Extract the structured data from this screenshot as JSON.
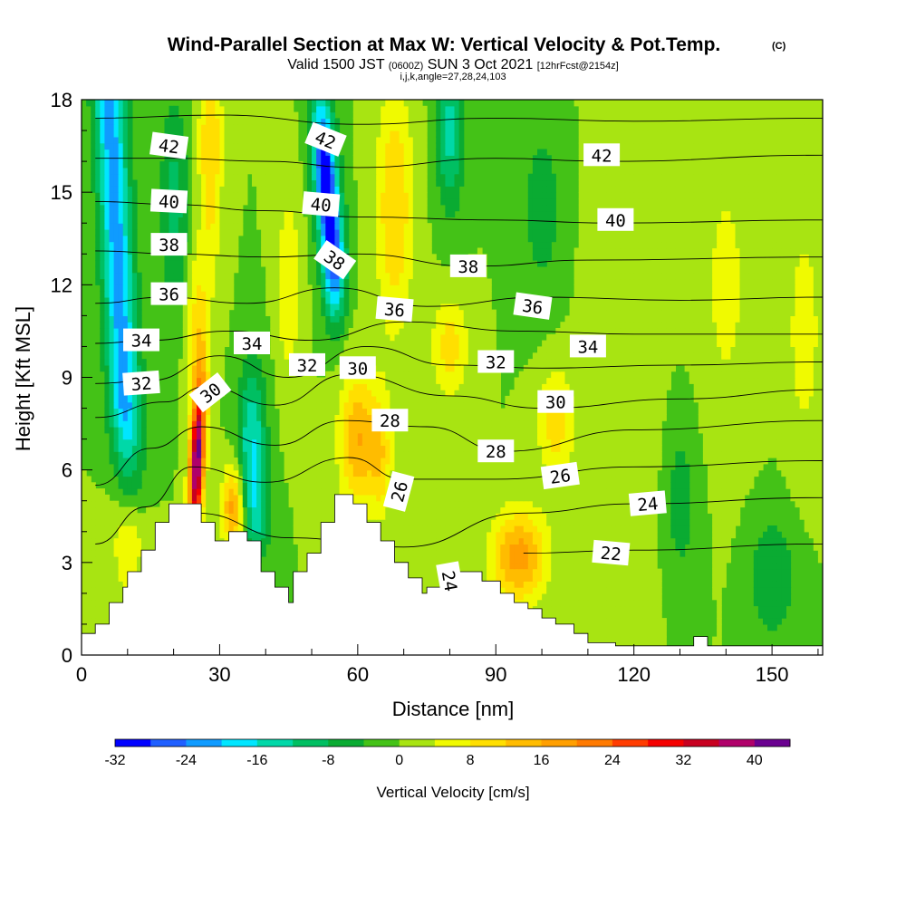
{
  "chart_data": {
    "type": "heatmap",
    "title": "Wind-Parallel Section at Max W: Vertical Velocity & Pot.Temp.",
    "title_mark": "(C)",
    "subtitle_parts": [
      "Valid 1500 JST",
      "(0600Z)",
      "SUN 3 Oct 2021",
      "[12hrFcst@2154z]"
    ],
    "subtitle2": "i,j,k,angle=27,28,24,103",
    "xlabel": "Distance [nm]",
    "ylabel": "Height [Kft MSL]",
    "xlim": [
      0,
      161
    ],
    "ylim": [
      0,
      18
    ],
    "xticks": [
      0,
      30,
      60,
      90,
      120,
      150
    ],
    "yticks": [
      0,
      3,
      6,
      9,
      12,
      15,
      18
    ],
    "colorbar": {
      "title": "Vertical Velocity [cm/s]",
      "levels": [
        -32,
        -28,
        -24,
        -20,
        -16,
        -12,
        -8,
        -4,
        0,
        4,
        8,
        12,
        16,
        20,
        24,
        28,
        32,
        36,
        40,
        44
      ],
      "tick_labels": [
        -32,
        -24,
        -16,
        -8,
        0,
        8,
        16,
        24,
        32,
        40
      ],
      "colors": [
        "#0000ff",
        "#1f5fff",
        "#0f9bff",
        "#00e6ff",
        "#00d8a8",
        "#00bf62",
        "#0aab32",
        "#44c217",
        "#a8e412",
        "#f0fa00",
        "#ffdf00",
        "#ffbc00",
        "#ff9f00",
        "#ff7a00",
        "#ff3c00",
        "#f50000",
        "#c80020",
        "#b0006a",
        "#6a0090"
      ]
    },
    "terrain_profile": {
      "x": [
        0,
        3,
        3,
        6,
        6,
        9,
        9,
        10,
        10,
        13,
        13,
        16,
        16,
        19,
        19,
        23,
        23,
        26,
        26,
        29,
        29,
        32,
        32,
        36,
        36,
        39,
        39,
        42,
        42,
        45,
        45,
        46,
        46,
        49,
        49,
        52,
        52,
        55,
        55,
        59,
        59,
        62,
        62,
        65,
        65,
        68,
        68,
        71,
        71,
        74,
        74,
        75,
        75,
        78,
        78,
        81,
        81,
        84,
        84,
        87,
        87,
        91,
        91,
        94,
        94,
        97,
        97,
        100,
        100,
        103,
        103,
        107,
        107,
        110,
        110,
        113,
        113,
        116,
        116,
        120,
        120,
        126,
        126,
        133,
        133,
        136,
        136,
        142,
        142,
        148,
        148,
        161
      ],
      "y": [
        0.7,
        0.7,
        1.0,
        1.0,
        1.7,
        1.7,
        2.2,
        2.2,
        2.7,
        2.7,
        3.4,
        3.4,
        4.3,
        4.3,
        4.9,
        4.9,
        4.9,
        4.9,
        4.3,
        4.3,
        3.7,
        3.7,
        4.0,
        4.0,
        3.7,
        3.7,
        2.7,
        2.7,
        2.2,
        2.2,
        1.7,
        1.7,
        2.7,
        2.7,
        3.3,
        3.3,
        4.3,
        4.3,
        5.2,
        5.2,
        4.9,
        4.9,
        4.3,
        4.3,
        3.7,
        3.7,
        3.0,
        3.0,
        2.5,
        2.5,
        2.0,
        2.0,
        2.2,
        2.2,
        2.5,
        2.5,
        2.7,
        2.7,
        2.7,
        2.7,
        2.4,
        2.4,
        2.0,
        2.0,
        1.7,
        1.7,
        1.5,
        1.5,
        1.2,
        1.2,
        1.0,
        1.0,
        0.7,
        0.7,
        0.4,
        0.4,
        0.4,
        0.4,
        0.3,
        0.3,
        0.3,
        0.3,
        0.3,
        0.3,
        0.6,
        0.6,
        0.3,
        0.3,
        0.3,
        0.3,
        0.3,
        0.3
      ]
    },
    "isentropes": [
      {
        "label": "22",
        "points": [
          [
            96,
            3.3
          ],
          [
            120,
            3.4
          ],
          [
            161,
            3.6
          ]
        ]
      },
      {
        "label": "24",
        "points": [
          [
            8,
            1.2
          ],
          [
            18,
            3.0
          ],
          [
            25,
            4.6
          ],
          [
            45,
            3.8
          ],
          [
            70,
            3.5
          ],
          [
            96,
            4.6
          ],
          [
            120,
            4.9
          ],
          [
            161,
            5.1
          ]
        ]
      },
      {
        "label": "26",
        "points": [
          [
            3,
            3.6
          ],
          [
            14,
            4.8
          ],
          [
            24,
            6.1
          ],
          [
            40,
            5.6
          ],
          [
            58,
            6.4
          ],
          [
            70,
            5.7
          ],
          [
            90,
            5.7
          ],
          [
            120,
            6.1
          ],
          [
            161,
            6.3
          ]
        ]
      },
      {
        "label": "28",
        "points": [
          [
            3,
            5.5
          ],
          [
            15,
            6.7
          ],
          [
            26,
            7.4
          ],
          [
            42,
            6.8
          ],
          [
            57,
            7.6
          ],
          [
            75,
            7.4
          ],
          [
            92,
            6.6
          ],
          [
            120,
            7.3
          ],
          [
            161,
            7.6
          ]
        ]
      },
      {
        "label": "30",
        "points": [
          [
            3,
            7.7
          ],
          [
            18,
            8.2
          ],
          [
            27,
            8.7
          ],
          [
            42,
            8.1
          ],
          [
            58,
            9.1
          ],
          [
            80,
            8.4
          ],
          [
            100,
            8.0
          ],
          [
            130,
            8.3
          ],
          [
            161,
            8.6
          ]
        ]
      },
      {
        "label": "32",
        "points": [
          [
            3,
            8.8
          ],
          [
            15,
            8.9
          ],
          [
            30,
            9.7
          ],
          [
            45,
            9.0
          ],
          [
            62,
            10.0
          ],
          [
            80,
            9.4
          ],
          [
            100,
            9.3
          ],
          [
            130,
            9.4
          ],
          [
            161,
            9.5
          ]
        ]
      },
      {
        "label": "34",
        "points": [
          [
            3,
            10.1
          ],
          [
            15,
            10.2
          ],
          [
            32,
            10.5
          ],
          [
            50,
            10.2
          ],
          [
            70,
            10.8
          ],
          [
            95,
            10.5
          ],
          [
            120,
            10.4
          ],
          [
            161,
            10.4
          ]
        ]
      },
      {
        "label": "36",
        "points": [
          [
            3,
            11.4
          ],
          [
            18,
            11.6
          ],
          [
            36,
            11.4
          ],
          [
            55,
            11.9
          ],
          [
            75,
            11.3
          ],
          [
            100,
            11.6
          ],
          [
            130,
            11.5
          ],
          [
            161,
            11.6
          ]
        ]
      },
      {
        "label": "38",
        "points": [
          [
            3,
            13.1
          ],
          [
            20,
            13.0
          ],
          [
            40,
            12.9
          ],
          [
            60,
            13.0
          ],
          [
            85,
            12.6
          ],
          [
            110,
            12.8
          ],
          [
            161,
            12.9
          ]
        ]
      },
      {
        "label": "40",
        "points": [
          [
            3,
            14.7
          ],
          [
            20,
            14.6
          ],
          [
            40,
            14.4
          ],
          [
            60,
            14.2
          ],
          [
            90,
            14.1
          ],
          [
            115,
            14.0
          ],
          [
            161,
            14.1
          ]
        ]
      },
      {
        "label": "42",
        "points": [
          [
            3,
            16.1
          ],
          [
            20,
            16.1
          ],
          [
            40,
            16.0
          ],
          [
            60,
            15.8
          ],
          [
            90,
            16.1
          ],
          [
            115,
            16.0
          ],
          [
            161,
            16.2
          ]
        ]
      },
      {
        "label": "",
        "points": [
          [
            3,
            17.4
          ],
          [
            30,
            17.5
          ],
          [
            60,
            17.2
          ],
          [
            90,
            17.4
          ],
          [
            120,
            17.3
          ],
          [
            161,
            17.4
          ]
        ]
      }
    ],
    "contour_labels": [
      {
        "text": "42",
        "x": 19,
        "y": 16.5,
        "angle": 8
      },
      {
        "text": "40",
        "x": 19,
        "y": 14.7,
        "angle": 3
      },
      {
        "text": "38",
        "x": 19,
        "y": 13.3,
        "angle": 0
      },
      {
        "text": "36",
        "x": 19,
        "y": 11.7,
        "angle": 0
      },
      {
        "text": "34",
        "x": 13,
        "y": 10.2,
        "angle": 0
      },
      {
        "text": "32",
        "x": 13,
        "y": 8.8,
        "angle": -4
      },
      {
        "text": "30",
        "x": 28,
        "y": 8.5,
        "angle": -38
      },
      {
        "text": "34",
        "x": 37,
        "y": 10.1,
        "angle": 0
      },
      {
        "text": "42",
        "x": 53,
        "y": 16.7,
        "angle": 22
      },
      {
        "text": "40",
        "x": 52,
        "y": 14.6,
        "angle": 5
      },
      {
        "text": "38",
        "x": 55,
        "y": 12.8,
        "angle": 35
      },
      {
        "text": "32",
        "x": 49,
        "y": 9.4,
        "angle": 0
      },
      {
        "text": "30",
        "x": 60,
        "y": 9.3,
        "angle": 0
      },
      {
        "text": "36",
        "x": 68,
        "y": 11.2,
        "angle": 5
      },
      {
        "text": "28",
        "x": 67,
        "y": 7.6,
        "angle": 0
      },
      {
        "text": "26",
        "x": 69,
        "y": 5.3,
        "angle": -75
      },
      {
        "text": "24",
        "x": 80,
        "y": 2.4,
        "angle": 80
      },
      {
        "text": "38",
        "x": 84,
        "y": 12.6,
        "angle": 0
      },
      {
        "text": "32",
        "x": 90,
        "y": 9.5,
        "angle": 0
      },
      {
        "text": "28",
        "x": 90,
        "y": 6.6,
        "angle": 0
      },
      {
        "text": "36",
        "x": 98,
        "y": 11.3,
        "angle": 8
      },
      {
        "text": "26",
        "x": 104,
        "y": 5.8,
        "angle": -8
      },
      {
        "text": "30",
        "x": 103,
        "y": 8.2,
        "angle": 0
      },
      {
        "text": "34",
        "x": 110,
        "y": 10.0,
        "angle": 0
      },
      {
        "text": "42",
        "x": 113,
        "y": 16.2,
        "angle": 0
      },
      {
        "text": "40",
        "x": 116,
        "y": 14.1,
        "angle": 0
      },
      {
        "text": "24",
        "x": 123,
        "y": 4.9,
        "angle": -5
      },
      {
        "text": "22",
        "x": 115,
        "y": 3.3,
        "angle": 5
      }
    ]
  }
}
